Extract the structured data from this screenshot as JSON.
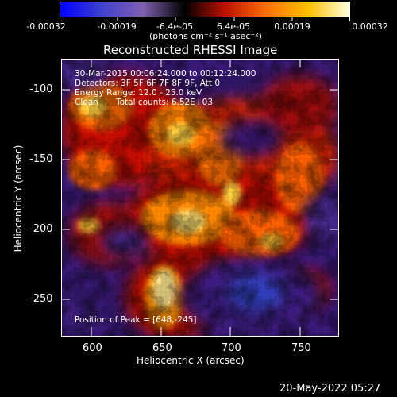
{
  "colorbar": {
    "tick_labels": [
      "-0.00032",
      "-0.00019",
      "-6.4e-05",
      "6.4e-05",
      "0.00019",
      "0.00032"
    ],
    "unit_label": "(photons cm⁻² s⁻¹ asec⁻²)",
    "stops": [
      "#0000ff",
      "#4040d0",
      "#8060b0",
      "#000000",
      "#c01000",
      "#ff7000",
      "#ffc000",
      "#ffffe0"
    ]
  },
  "plot": {
    "title": "Reconstructed RHESSI Image",
    "xlabel": "Heliocentric X (arcsec)",
    "ylabel": "Heliocentric Y (arcsec)",
    "x_ticks": [
      "600",
      "650",
      "700",
      "750"
    ],
    "y_ticks": [
      "-100",
      "-150",
      "-200",
      "-250"
    ]
  },
  "annotations": {
    "time_range": "30-Mar-2015 00:06:24.000 to 00:12:24.000",
    "detectors": "Detectors: 3F 5F 6F 7F 8F 9F, Att 0",
    "energy": "Energy Range: 12.0 - 25.0 keV",
    "method": "Clean",
    "counts": "Total counts: 6.52E+03",
    "peak": "Position of Peak = [648,-245]"
  },
  "timestamp": "20-May-2022 05:27"
}
